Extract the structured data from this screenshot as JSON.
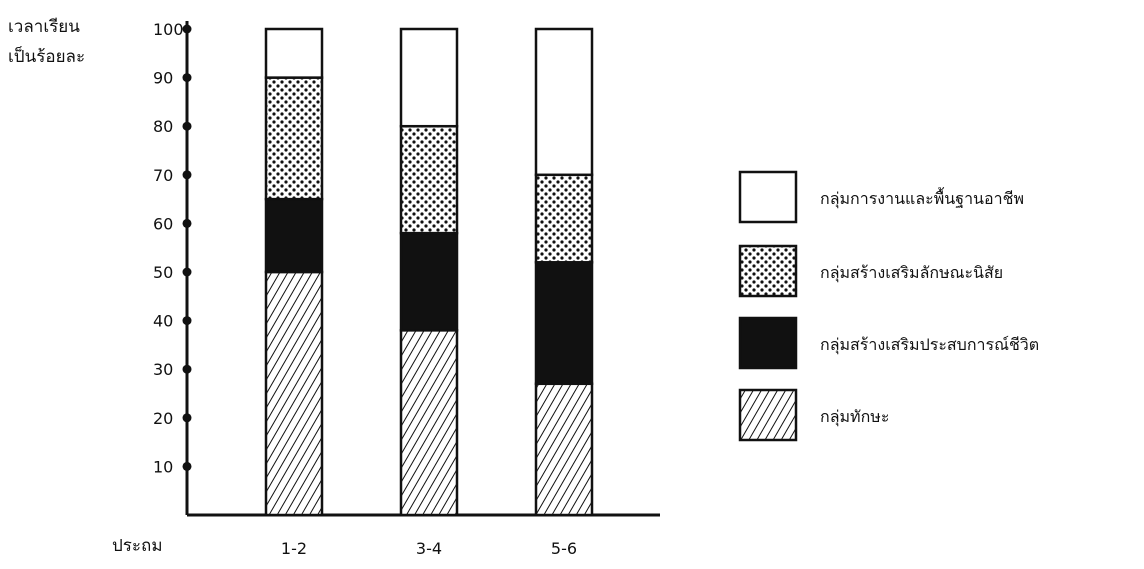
{
  "chart_data": {
    "type": "bar",
    "stacked": true,
    "ylabel_lines": [
      "เวลาเรียน",
      "เป็นร้อยละ"
    ],
    "xlabel": "ประถม",
    "categories": [
      "1-2",
      "3-4",
      "5-6"
    ],
    "ylim": [
      0,
      100
    ],
    "yticks": [
      10,
      20,
      30,
      40,
      50,
      60,
      70,
      80,
      90,
      100
    ],
    "series": [
      {
        "name": "กลุ่มทักษะ",
        "values": [
          50,
          38,
          27
        ],
        "pattern": "hatch"
      },
      {
        "name": "กลุ่มสร้างเสริมประสบการณ์ชีวิต",
        "values": [
          15,
          20,
          25
        ],
        "pattern": "solid"
      },
      {
        "name": "กลุ่มสร้างเสริมลักษณะนิสัย",
        "values": [
          25,
          22,
          18
        ],
        "pattern": "dots"
      },
      {
        "name": "กลุ่มการงานและพื้นฐานอาชีพ",
        "values": [
          10,
          20,
          30
        ],
        "pattern": "empty"
      }
    ],
    "legend_order": [
      3,
      2,
      1,
      0
    ],
    "legend_placement": "right",
    "grid": false,
    "colors": {
      "ink": "#111111",
      "background": "#ffffff"
    }
  }
}
